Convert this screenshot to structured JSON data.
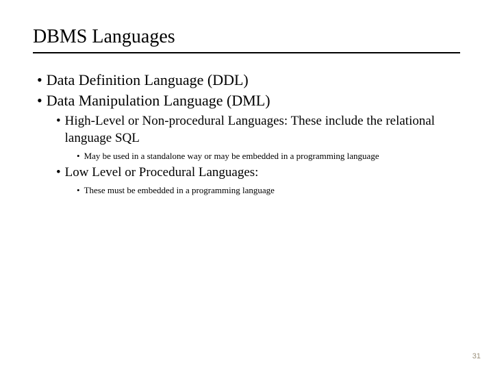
{
  "title": "DBMS Languages",
  "bullets": {
    "l1_0": "Data Definition Language (DDL)",
    "l1_1": "Data Manipulation Language (DML)",
    "l2_0": "High-Level or Non-procedural Languages: These include the relational language SQL",
    "l3_0": "May be used in a standalone way or may be embedded in a programming language",
    "l2_1": "Low Level or Procedural Languages:",
    "l3_1": "These must be embedded in a programming language"
  },
  "page_number": "31",
  "colors": {
    "text": "#000000",
    "background": "#ffffff",
    "pagenum": "#9a8f7a",
    "hr": "#000000"
  },
  "fontsizes": {
    "title": 28,
    "lvl1": 22,
    "lvl2": 19,
    "lvl3": 13,
    "pagenum": 11
  }
}
